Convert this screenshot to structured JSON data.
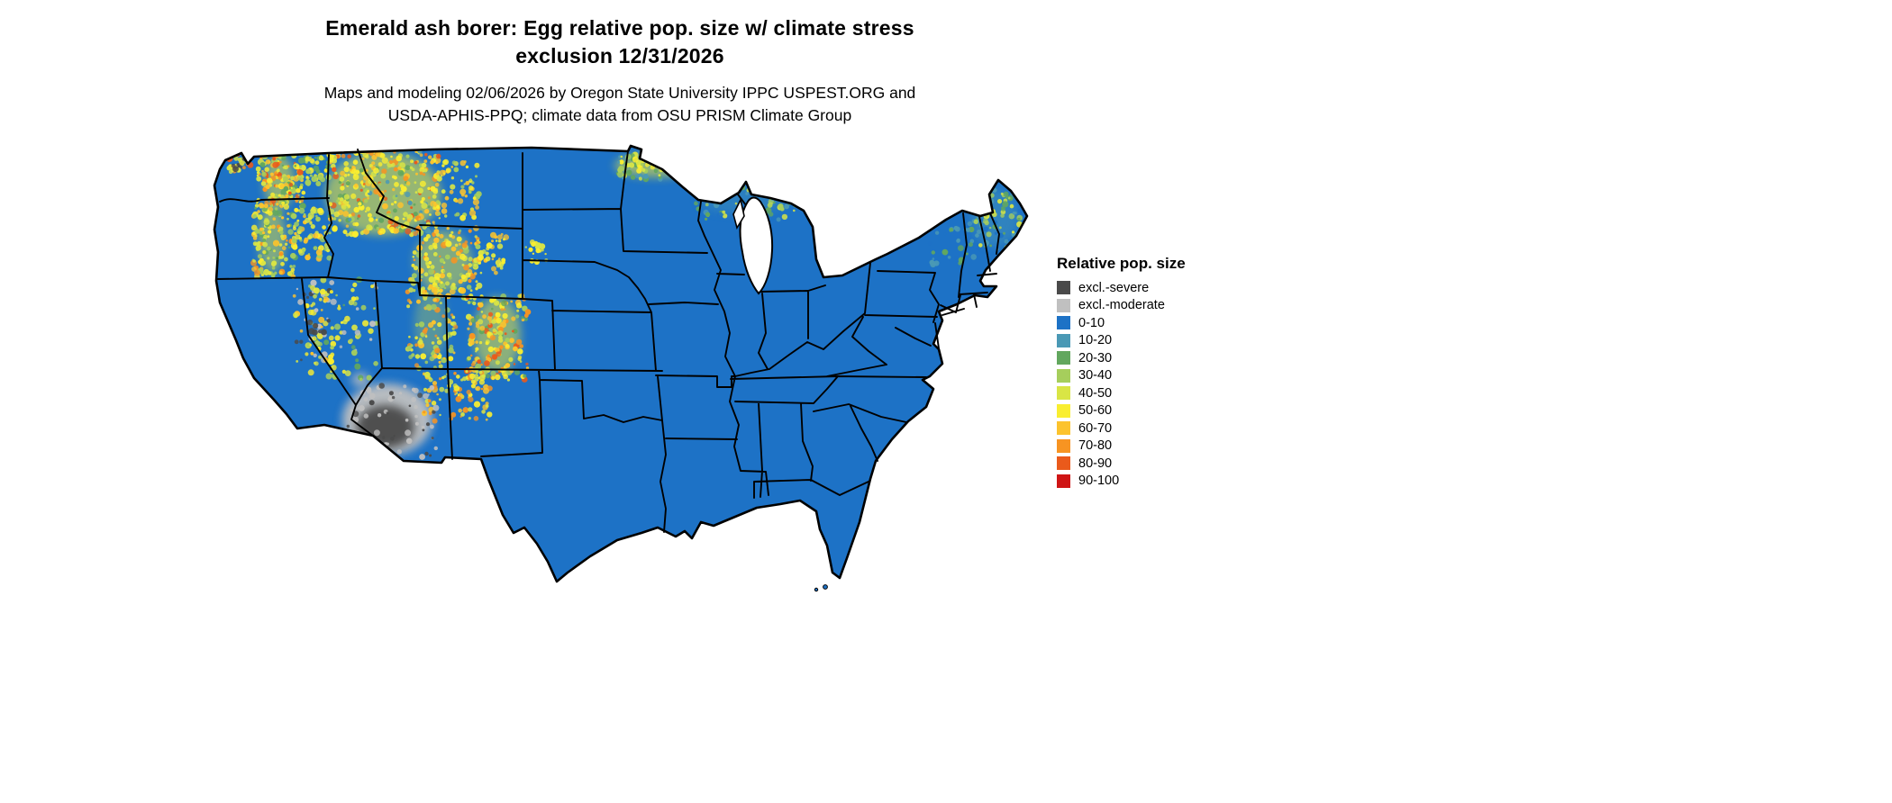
{
  "title": {
    "line1": "Emerald ash borer: Egg relative pop. size w/ climate stress",
    "line2": "exclusion 12/31/2026"
  },
  "subtitle": {
    "line1": "Maps and modeling 02/06/2026 by Oregon State University IPPC USPEST.ORG and",
    "line2": "USDA-APHIS-PPQ; climate data from OSU PRISM Climate Group"
  },
  "legend": {
    "title": "Relative pop. size",
    "items": [
      {
        "label": "excl.-severe",
        "color": "#4a4a4a"
      },
      {
        "label": "excl.-moderate",
        "color": "#c0c0c0"
      },
      {
        "label": "0-10",
        "color": "#1d72c6"
      },
      {
        "label": "10-20",
        "color": "#4a99b5"
      },
      {
        "label": "20-30",
        "color": "#62a75e"
      },
      {
        "label": "30-40",
        "color": "#a6ce5c"
      },
      {
        "label": "40-50",
        "color": "#d9e545"
      },
      {
        "label": "50-60",
        "color": "#f9ee30"
      },
      {
        "label": "60-70",
        "color": "#fcc32d"
      },
      {
        "label": "70-80",
        "color": "#f79422"
      },
      {
        "label": "80-90",
        "color": "#ea5a1b"
      },
      {
        "label": "90-100",
        "color": "#cf1515"
      }
    ]
  },
  "map": {
    "region": "Continental United States",
    "base_color": "#1d72c6",
    "border_color": "#000000"
  }
}
